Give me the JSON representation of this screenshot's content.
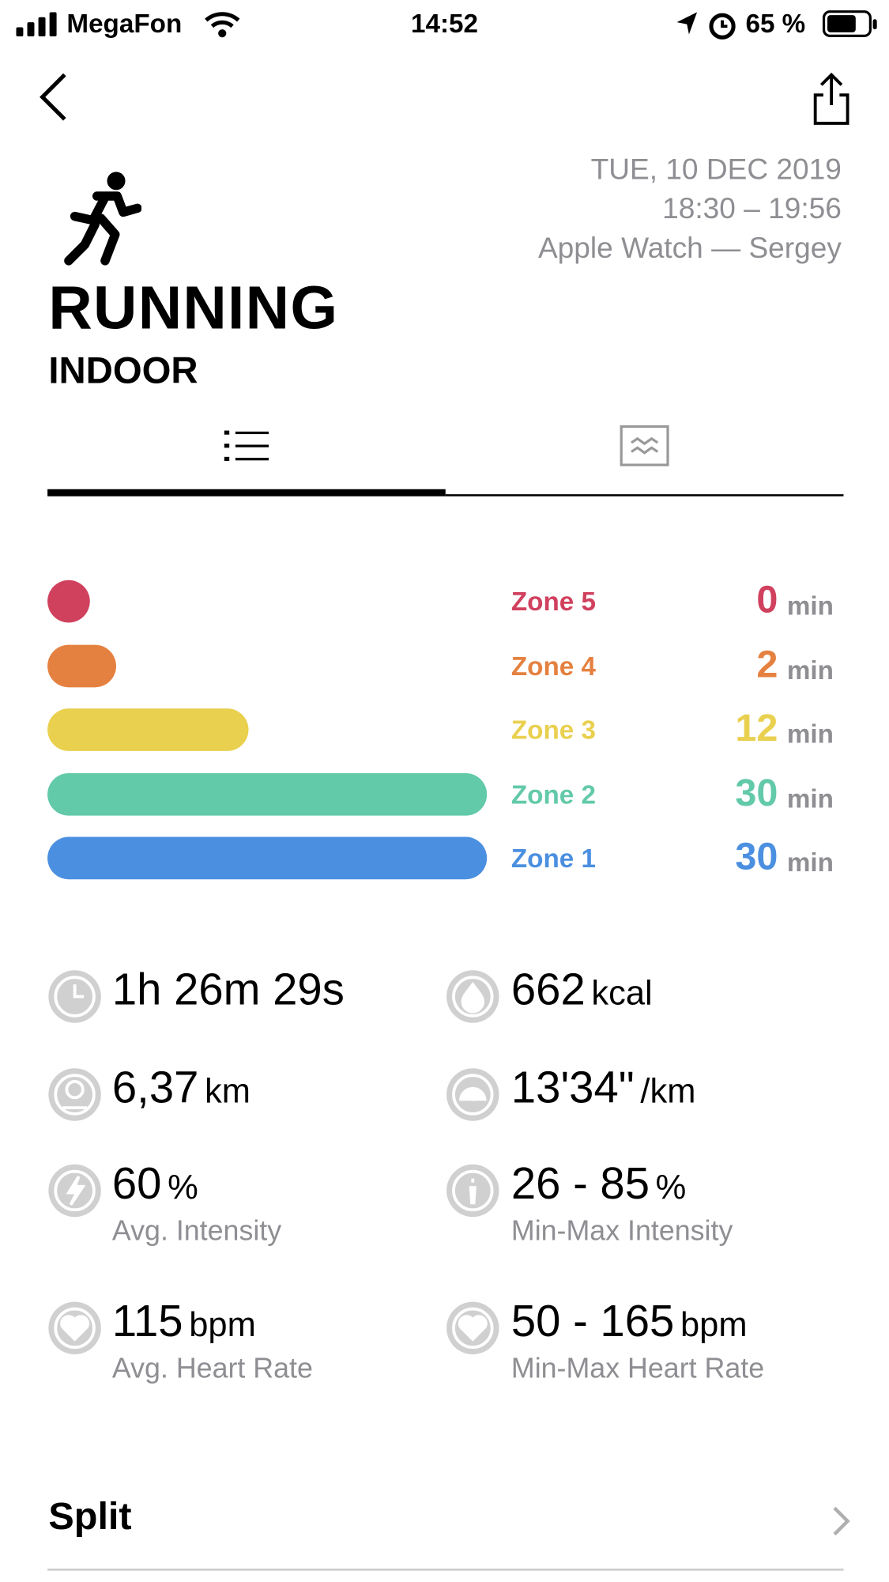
{
  "status_bar": {
    "carrier": "MegaFon",
    "time": "14:52",
    "battery": "65 %"
  },
  "workout": {
    "date": "TUE, 10 DEC 2019",
    "time_range": "18:30 – 19:56",
    "device": "Apple Watch — Sergey",
    "title": "RUNNING",
    "subtitle": "INDOOR"
  },
  "zones": [
    {
      "name": "Zone 5",
      "value": 0,
      "unit": "min",
      "color": "#d0415e"
    },
    {
      "name": "Zone 4",
      "value": 2,
      "unit": "min",
      "color": "#e58140"
    },
    {
      "name": "Zone 3",
      "value": 12,
      "unit": "min",
      "color": "#e9d04f"
    },
    {
      "name": "Zone 2",
      "value": 30,
      "unit": "min",
      "color": "#62c9a9"
    },
    {
      "name": "Zone 1",
      "value": 30,
      "unit": "min",
      "color": "#4b8fe0"
    }
  ],
  "stats": [
    {
      "value": "1h 26m 29s"
    },
    {
      "value": "662",
      "unit": "kcal"
    },
    {
      "value": "6,37",
      "unit": "km"
    },
    {
      "value": "13'34\"",
      "unit": "/km"
    },
    {
      "value": "60",
      "unit": "%",
      "label": "Avg. Intensity"
    },
    {
      "value": "26 - 85",
      "unit": "%",
      "label": "Min-Max Intensity"
    },
    {
      "value": "115",
      "unit": "bpm",
      "label": "Avg. Heart Rate"
    },
    {
      "value": "50 - 165",
      "unit": "bpm",
      "label": "Min-Max Heart Rate"
    }
  ],
  "section": {
    "title": "Split"
  }
}
